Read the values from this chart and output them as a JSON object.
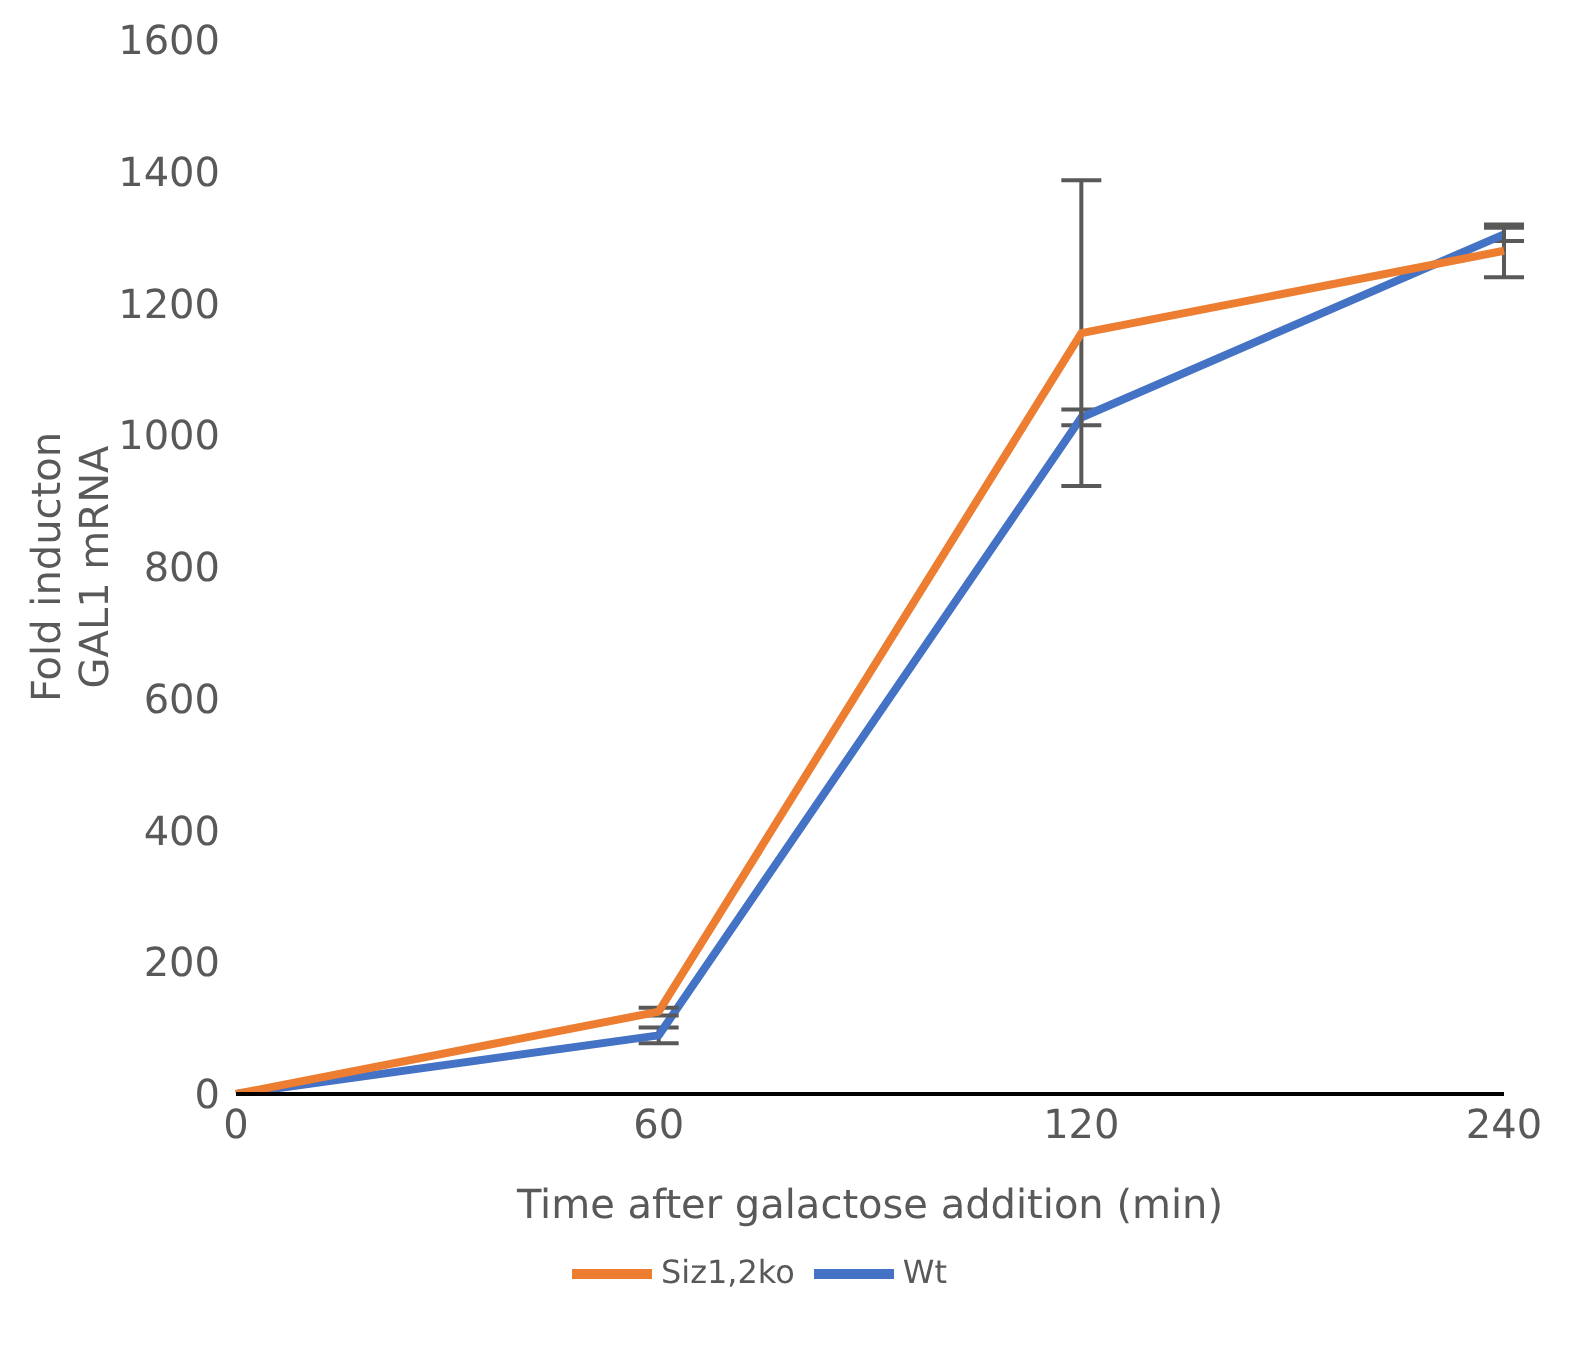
{
  "chart_data": {
    "type": "line",
    "xlabel": "Time after galactose addition (min)",
    "ylabel": "Fold inducton GAL1 mRNA",
    "categories": [
      "0",
      "60",
      "120",
      "240"
    ],
    "series": [
      {
        "name": "Wt",
        "color": "#4472c4",
        "values": [
          0,
          89,
          1027,
          1305
        ],
        "errors": [
          null,
          12,
          12,
          10
        ]
      },
      {
        "name": "Siz1,2ko",
        "color": "#ed7d31",
        "values": [
          0,
          125,
          1155,
          1280
        ],
        "errors": [
          null,
          6,
          232,
          40
        ]
      }
    ],
    "ylim": [
      0,
      1600
    ],
    "yticks": [
      0,
      200,
      400,
      600,
      800,
      1000,
      1200,
      1400,
      1600
    ],
    "grid": false,
    "legend": "bottom",
    "marker": "none",
    "line_style": "solid"
  }
}
